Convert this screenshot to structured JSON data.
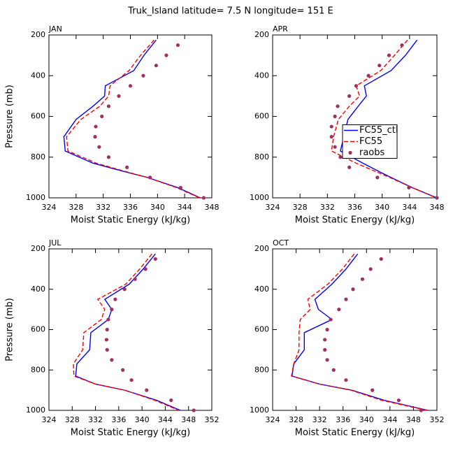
{
  "title": "Truk_Island  latitude= 7.5 N longitude= 151 E",
  "chart_data": [
    {
      "type": "line",
      "title": "JAN",
      "xlabel": "Moist Static Energy (kJ/kg)",
      "ylabel": "Pressure (mb)",
      "xlim": [
        324,
        348
      ],
      "xticks": [
        324,
        328,
        332,
        336,
        340,
        344,
        348
      ],
      "ylim": [
        1000,
        200
      ],
      "yticks": [
        200,
        400,
        600,
        800,
        1000
      ],
      "series": [
        {
          "color": "#0000ff",
          "style": "solid",
          "x": [
            339.8,
            338.0,
            336.5,
            332.3,
            332.2,
            330.5,
            328.0,
            326.2,
            326.4,
            330.5,
            335.0,
            338.5,
            343.0,
            346.3
          ],
          "y": [
            225,
            300,
            375,
            450,
            500,
            550,
            615,
            700,
            770,
            830,
            870,
            900,
            950,
            1000
          ]
        },
        {
          "color": "#ff0000",
          "style": "dashed",
          "x": [
            339.5,
            337.5,
            335.8,
            333.0,
            332.8,
            331.5,
            328.7,
            326.6,
            326.8,
            331.0,
            335.2,
            338.5,
            342.8,
            346.2
          ],
          "y": [
            225,
            300,
            375,
            450,
            500,
            550,
            615,
            700,
            770,
            830,
            870,
            900,
            950,
            1000
          ]
        },
        {
          "color": "#a03060",
          "style": "dots",
          "x": [
            343.0,
            341.3,
            339.8,
            337.9,
            336.0,
            334.3,
            332.8,
            331.8,
            330.9,
            330.8,
            331.4,
            332.8,
            335.5,
            338.9,
            343.4,
            346.8
          ],
          "y": [
            250,
            300,
            350,
            400,
            450,
            500,
            550,
            600,
            650,
            700,
            750,
            800,
            850,
            900,
            950,
            1000
          ]
        }
      ]
    },
    {
      "type": "line",
      "title": "APR",
      "xlabel": "Moist Static Energy (kJ/kg)",
      "legend": "center-right",
      "xlim": [
        324,
        348
      ],
      "xticks": [
        324,
        328,
        332,
        336,
        340,
        344,
        348
      ],
      "ylim": [
        1000,
        200
      ],
      "yticks": [
        200,
        400,
        600,
        800,
        1000
      ],
      "series": [
        {
          "name": "FC55_ctl",
          "color": "#0000ff",
          "style": "solid",
          "x": [
            345.1,
            343.4,
            341.3,
            337.4,
            337.7,
            336.5,
            335.0,
            334.4,
            333.9,
            337.2,
            339.5,
            341.3,
            344.4,
            348.0
          ],
          "y": [
            225,
            300,
            375,
            450,
            500,
            550,
            615,
            700,
            770,
            830,
            870,
            900,
            950,
            1000
          ]
        },
        {
          "name": "FC55",
          "color": "#ff0000",
          "style": "dashed",
          "x": [
            343.7,
            341.8,
            339.8,
            336.2,
            336.7,
            335.2,
            333.6,
            332.9,
            332.6,
            336.2,
            339.0,
            341.1,
            344.4,
            347.9
          ],
          "y": [
            225,
            300,
            375,
            450,
            500,
            550,
            615,
            700,
            770,
            830,
            870,
            900,
            950,
            1000
          ]
        },
        {
          "name": "raobs",
          "color": "#a03060",
          "style": "dots",
          "x": [
            342.9,
            341.0,
            339.6,
            338.0,
            336.2,
            335.2,
            333.5,
            333.1,
            332.6,
            332.6,
            333.1,
            333.9,
            335.2,
            339.3,
            343.9,
            348.0
          ],
          "y": [
            250,
            300,
            350,
            400,
            450,
            500,
            550,
            600,
            650,
            700,
            750,
            800,
            850,
            900,
            950,
            1000
          ]
        }
      ]
    },
    {
      "type": "line",
      "title": "JUL",
      "xlabel": "Moist Static Energy (kJ/kg)",
      "ylabel": "Pressure (mb)",
      "xlim": [
        324,
        352
      ],
      "xticks": [
        324,
        328,
        332,
        336,
        340,
        344,
        348,
        352
      ],
      "ylim": [
        1000,
        200
      ],
      "yticks": [
        200,
        400,
        600,
        800,
        1000
      ],
      "series": [
        {
          "color": "#0000ff",
          "style": "solid",
          "x": [
            342.3,
            340.2,
            337.8,
            333.6,
            334.8,
            334.2,
            331.2,
            331.0,
            328.8,
            328.6,
            332.0,
            337.0,
            342.5,
            346.6
          ],
          "y": [
            225,
            300,
            375,
            450,
            500,
            550,
            615,
            700,
            770,
            830,
            870,
            900,
            950,
            1000
          ]
        },
        {
          "color": "#ff0000",
          "style": "dashed",
          "x": [
            341.7,
            339.6,
            337.2,
            332.4,
            333.6,
            333.0,
            330.0,
            329.8,
            328.2,
            328.3,
            332.0,
            337.0,
            342.2,
            346.3
          ],
          "y": [
            225,
            300,
            375,
            450,
            500,
            550,
            615,
            700,
            770,
            830,
            870,
            900,
            950,
            1000
          ]
        },
        {
          "color": "#a03060",
          "style": "dots",
          "x": [
            342.3,
            340.6,
            338.8,
            337.0,
            335.4,
            334.8,
            334.2,
            334.0,
            333.9,
            334.0,
            334.8,
            336.7,
            338.2,
            340.8,
            345.0,
            348.9
          ],
          "y": [
            250,
            300,
            350,
            400,
            450,
            500,
            550,
            600,
            650,
            700,
            750,
            800,
            850,
            900,
            950,
            1000
          ]
        }
      ]
    },
    {
      "type": "line",
      "title": "OCT",
      "xlabel": "Moist Static Energy (kJ/kg)",
      "xlim": [
        324,
        352
      ],
      "xticks": [
        324,
        328,
        332,
        336,
        340,
        344,
        348,
        352
      ],
      "ylim": [
        1000,
        200
      ],
      "yticks": [
        200,
        400,
        600,
        800,
        1000
      ],
      "series": [
        {
          "color": "#0000ff",
          "style": "solid",
          "x": [
            338.5,
            336.5,
            334.1,
            331.2,
            331.8,
            334.1,
            329.4,
            329.4,
            327.6,
            327.3,
            332.0,
            337.5,
            343.0,
            350.5
          ],
          "y": [
            225,
            300,
            375,
            450,
            500,
            550,
            615,
            700,
            770,
            830,
            870,
            900,
            950,
            1000
          ]
        },
        {
          "color": "#ff0000",
          "style": "dashed",
          "x": [
            337.9,
            335.9,
            333.4,
            330.0,
            330.4,
            328.7,
            328.5,
            328.5,
            327.6,
            327.2,
            332.0,
            337.3,
            342.6,
            350.3
          ],
          "y": [
            225,
            300,
            375,
            450,
            500,
            550,
            615,
            700,
            770,
            830,
            870,
            900,
            950,
            1000
          ]
        },
        {
          "color": "#a03060",
          "style": "dots",
          "x": [
            342.5,
            340.7,
            339.3,
            337.7,
            336.5,
            335.3,
            333.9,
            333.3,
            332.9,
            332.9,
            333.3,
            334.4,
            336.5,
            341.0,
            345.5,
            349.3
          ],
          "y": [
            250,
            300,
            350,
            400,
            450,
            500,
            550,
            600,
            650,
            700,
            750,
            800,
            850,
            900,
            950,
            1000
          ]
        }
      ]
    }
  ]
}
